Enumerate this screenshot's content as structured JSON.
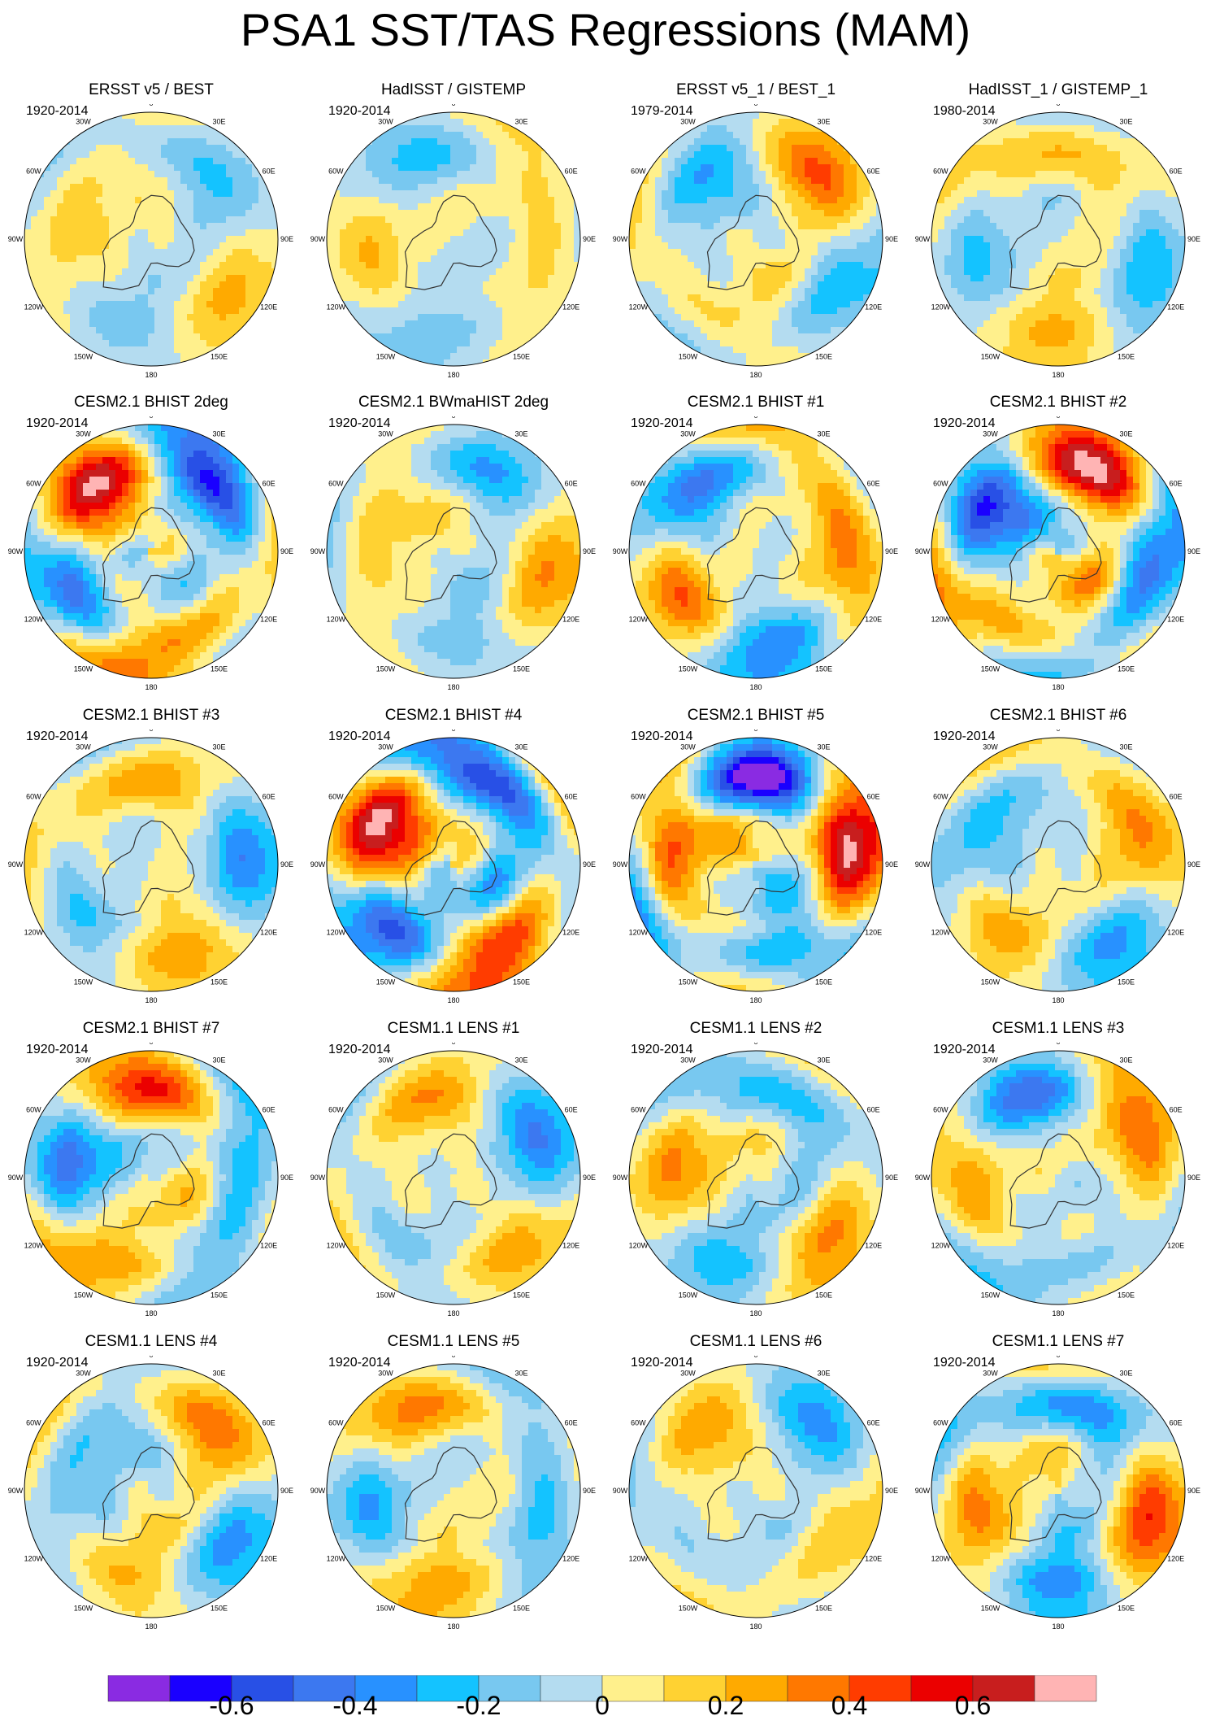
{
  "chart_data": {
    "type": "heatmap",
    "title": "PSA1 SST/TAS Regressions (MAM)",
    "projection": "south polar stereographic",
    "panels": [
      {
        "title": "ERSST v5 / BEST",
        "period": "1920-2014",
        "amp": 0.2
      },
      {
        "title": "HadISST / GISTEMP",
        "period": "1920-2014",
        "amp": 0.2
      },
      {
        "title": "ERSST v5_1 / BEST_1",
        "period": "1979-2014",
        "amp": 0.3
      },
      {
        "title": "HadISST_1 / GISTEMP_1",
        "period": "1980-2014",
        "amp": 0.25
      },
      {
        "title": "CESM2.1 BHIST 2deg",
        "period": "1920-2014",
        "amp": 0.55
      },
      {
        "title": "CESM2.1 BWmaHIST 2deg",
        "period": "1920-2014",
        "amp": 0.25
      },
      {
        "title": "CESM2.1 BHIST #1",
        "period": "1920-2014",
        "amp": 0.4
      },
      {
        "title": "CESM2.1 BHIST #2",
        "period": "1920-2014",
        "amp": 0.55
      },
      {
        "title": "CESM2.1 BHIST #3",
        "period": "1920-2014",
        "amp": 0.3
      },
      {
        "title": "CESM2.1 BHIST #4",
        "period": "1920-2014",
        "amp": 0.6
      },
      {
        "title": "CESM2.1 BHIST #5",
        "period": "1920-2014",
        "amp": 0.6
      },
      {
        "title": "CESM2.1 BHIST #6",
        "period": "1920-2014",
        "amp": 0.3
      },
      {
        "title": "CESM2.1 BHIST #7",
        "period": "1920-2014",
        "amp": 0.4
      },
      {
        "title": "CESM1.1 LENS #1",
        "period": "1920-2014",
        "amp": 0.3
      },
      {
        "title": "CESM1.1 LENS #2",
        "period": "1920-2014",
        "amp": 0.3
      },
      {
        "title": "CESM1.1 LENS #3",
        "period": "1920-2014",
        "amp": 0.35
      },
      {
        "title": "CESM1.1 LENS #4",
        "period": "1920-2014",
        "amp": 0.3
      },
      {
        "title": "CESM1.1 LENS #5",
        "period": "1920-2014",
        "amp": 0.3
      },
      {
        "title": "CESM1.1 LENS #6",
        "period": "1920-2014",
        "amp": 0.25
      },
      {
        "title": "CESM1.1 LENS #7",
        "period": "1920-2014",
        "amp": 0.4
      }
    ],
    "longitude_labels": [
      "0",
      "30E",
      "60E",
      "90E",
      "120E",
      "150E",
      "180",
      "150W",
      "120W",
      "90W",
      "60W",
      "30W"
    ],
    "colorbar": {
      "levels": [
        -0.7,
        -0.6,
        -0.5,
        -0.4,
        -0.3,
        -0.2,
        -0.1,
        0,
        0.1,
        0.2,
        0.3,
        0.4,
        0.5,
        0.6,
        0.7
      ],
      "colors": [
        "#8a2be2",
        "#1a00ff",
        "#2850e6",
        "#3c78f0",
        "#2891ff",
        "#14c3ff",
        "#78c8f0",
        "#b4dcf0",
        "#fff08c",
        "#ffd232",
        "#ffaa00",
        "#ff7800",
        "#ff3c00",
        "#eb0000",
        "#c81e1e",
        "#ffb4b4"
      ],
      "tick_labels": [
        "-0.6",
        "-0.4",
        "-0.2",
        "0",
        "0.2",
        "0.4",
        "0.6"
      ]
    }
  }
}
